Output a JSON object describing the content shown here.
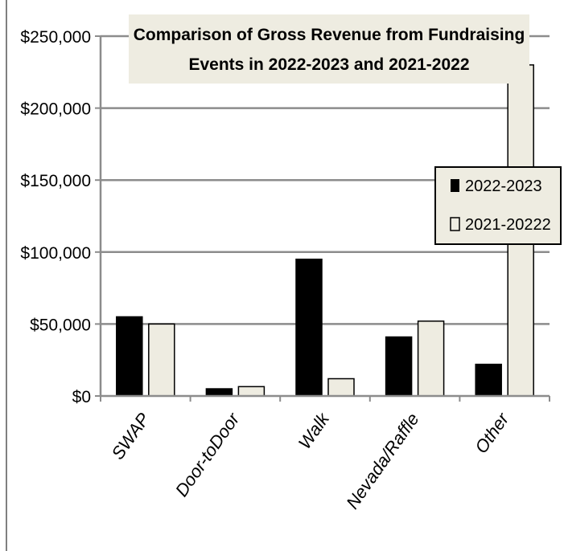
{
  "chart_data": {
    "type": "bar",
    "title_lines": [
      "Comparison of Gross Revenue from Fundraising",
      "Events in 2022-2023 and 2021-2022"
    ],
    "categories": [
      "SWAP",
      "Door-toDoor",
      "Walk",
      "Nevada/Raffle",
      "Other"
    ],
    "series": [
      {
        "name": "2022-2023",
        "values": [
          55000,
          5000,
          95000,
          41000,
          22000
        ],
        "color": "#000000"
      },
      {
        "name": "2021-20222",
        "values": [
          50000,
          6500,
          12000,
          52000,
          230000
        ],
        "color": "#eeece1"
      }
    ],
    "ylim": [
      0,
      250000
    ],
    "yticks": [
      0,
      50000,
      100000,
      150000,
      200000,
      250000
    ],
    "ytick_labels": [
      "$0",
      "$50,000",
      "$100,000",
      "$150,000",
      "$200,000",
      "$250,000"
    ],
    "grid": true,
    "legend_position": "right",
    "title_background": "#eeece1"
  }
}
